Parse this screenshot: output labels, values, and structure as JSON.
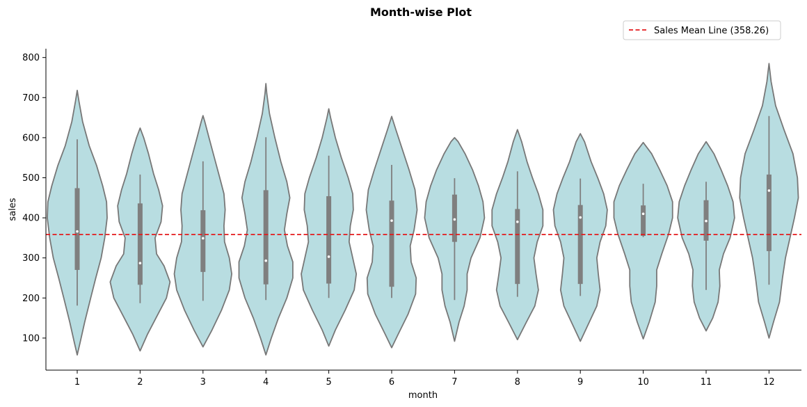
{
  "chart_data": {
    "type": "violin",
    "title": "Month-wise Plot",
    "xlabel": "month",
    "ylabel": "sales",
    "ylim": [
      20,
      822
    ],
    "yticks": [
      100,
      200,
      300,
      400,
      500,
      600,
      700,
      800
    ],
    "categories": [
      "1",
      "2",
      "3",
      "4",
      "5",
      "6",
      "7",
      "8",
      "9",
      "10",
      "11",
      "12"
    ],
    "violin_color": "#b8dde1",
    "edge_color": "#777777",
    "box_color": "#7f7f7f",
    "reference_line": {
      "label": "Sales Mean Line (358.26)",
      "value": 358.26,
      "color": "#e41a1c",
      "style": "dashed"
    },
    "legend_position": "upper-right",
    "violins": [
      {
        "month": "1",
        "min": 58,
        "max": 718,
        "whisker_low": 181,
        "q1": 270,
        "median": 366,
        "q3": 474,
        "whisker_high": 596,
        "profile": [
          [
            58,
            0.0
          ],
          [
            90,
            0.1
          ],
          [
            140,
            0.25
          ],
          [
            200,
            0.45
          ],
          [
            250,
            0.62
          ],
          [
            300,
            0.8
          ],
          [
            350,
            0.92
          ],
          [
            400,
            1.0
          ],
          [
            440,
            0.98
          ],
          [
            480,
            0.85
          ],
          [
            530,
            0.65
          ],
          [
            580,
            0.4
          ],
          [
            640,
            0.18
          ],
          [
            690,
            0.06
          ],
          [
            718,
            0.0
          ]
        ]
      },
      {
        "month": "2",
        "min": 68,
        "max": 624,
        "whisker_low": 187,
        "q1": 233,
        "median": 287,
        "q3": 436,
        "whisker_high": 508,
        "profile": [
          [
            68,
            0.0
          ],
          [
            110,
            0.25
          ],
          [
            160,
            0.6
          ],
          [
            200,
            0.88
          ],
          [
            240,
            1.0
          ],
          [
            280,
            0.8
          ],
          [
            310,
            0.55
          ],
          [
            350,
            0.5
          ],
          [
            390,
            0.7
          ],
          [
            430,
            0.75
          ],
          [
            470,
            0.62
          ],
          [
            510,
            0.45
          ],
          [
            560,
            0.28
          ],
          [
            600,
            0.12
          ],
          [
            624,
            0.0
          ]
        ]
      },
      {
        "month": "3",
        "min": 78,
        "max": 655,
        "whisker_low": 193,
        "q1": 265,
        "median": 349,
        "q3": 419,
        "whisker_high": 541,
        "profile": [
          [
            78,
            0.0
          ],
          [
            120,
            0.3
          ],
          [
            170,
            0.62
          ],
          [
            220,
            0.88
          ],
          [
            260,
            0.96
          ],
          [
            300,
            0.88
          ],
          [
            340,
            0.72
          ],
          [
            380,
            0.7
          ],
          [
            420,
            0.74
          ],
          [
            460,
            0.7
          ],
          [
            500,
            0.56
          ],
          [
            550,
            0.38
          ],
          [
            600,
            0.2
          ],
          [
            640,
            0.06
          ],
          [
            655,
            0.0
          ]
        ]
      },
      {
        "month": "4",
        "min": 58,
        "max": 735,
        "whisker_low": 195,
        "q1": 234,
        "median": 293,
        "q3": 469,
        "whisker_high": 601,
        "profile": [
          [
            58,
            0.0
          ],
          [
            100,
            0.18
          ],
          [
            150,
            0.42
          ],
          [
            200,
            0.7
          ],
          [
            250,
            0.9
          ],
          [
            290,
            0.9
          ],
          [
            330,
            0.72
          ],
          [
            370,
            0.62
          ],
          [
            410,
            0.7
          ],
          [
            450,
            0.8
          ],
          [
            490,
            0.7
          ],
          [
            540,
            0.5
          ],
          [
            600,
            0.3
          ],
          [
            660,
            0.12
          ],
          [
            710,
            0.03
          ],
          [
            735,
            0.0
          ]
        ]
      },
      {
        "month": "5",
        "min": 80,
        "max": 672,
        "whisker_low": 200,
        "q1": 236,
        "median": 303,
        "q3": 454,
        "whisker_high": 555,
        "profile": [
          [
            80,
            0.0
          ],
          [
            120,
            0.22
          ],
          [
            170,
            0.55
          ],
          [
            220,
            0.85
          ],
          [
            260,
            0.92
          ],
          [
            300,
            0.8
          ],
          [
            340,
            0.68
          ],
          [
            380,
            0.72
          ],
          [
            420,
            0.82
          ],
          [
            460,
            0.8
          ],
          [
            500,
            0.65
          ],
          [
            550,
            0.42
          ],
          [
            600,
            0.22
          ],
          [
            650,
            0.06
          ],
          [
            672,
            0.0
          ]
        ]
      },
      {
        "month": "6",
        "min": 76,
        "max": 653,
        "whisker_low": 200,
        "q1": 228,
        "median": 393,
        "q3": 443,
        "whisker_high": 532,
        "profile": [
          [
            76,
            0.0
          ],
          [
            110,
            0.22
          ],
          [
            160,
            0.55
          ],
          [
            210,
            0.8
          ],
          [
            250,
            0.82
          ],
          [
            290,
            0.65
          ],
          [
            330,
            0.62
          ],
          [
            370,
            0.75
          ],
          [
            420,
            0.85
          ],
          [
            470,
            0.78
          ],
          [
            520,
            0.58
          ],
          [
            570,
            0.36
          ],
          [
            620,
            0.14
          ],
          [
            653,
            0.0
          ]
        ]
      },
      {
        "month": "7",
        "min": 92,
        "max": 600,
        "whisker_low": 195,
        "q1": 340,
        "median": 396,
        "q3": 458,
        "whisker_high": 499,
        "profile": [
          [
            92,
            0.0
          ],
          [
            140,
            0.15
          ],
          [
            180,
            0.32
          ],
          [
            220,
            0.42
          ],
          [
            260,
            0.42
          ],
          [
            300,
            0.55
          ],
          [
            350,
            0.85
          ],
          [
            400,
            1.0
          ],
          [
            440,
            0.95
          ],
          [
            480,
            0.8
          ],
          [
            520,
            0.6
          ],
          [
            560,
            0.35
          ],
          [
            590,
            0.12
          ],
          [
            600,
            0.0
          ]
        ]
      },
      {
        "month": "8",
        "min": 96,
        "max": 620,
        "whisker_low": 203,
        "q1": 235,
        "median": 390,
        "q3": 422,
        "whisker_high": 516,
        "profile": [
          [
            96,
            0.0
          ],
          [
            140,
            0.3
          ],
          [
            180,
            0.58
          ],
          [
            220,
            0.7
          ],
          [
            260,
            0.62
          ],
          [
            300,
            0.55
          ],
          [
            340,
            0.66
          ],
          [
            380,
            0.85
          ],
          [
            420,
            0.85
          ],
          [
            460,
            0.7
          ],
          [
            500,
            0.5
          ],
          [
            540,
            0.32
          ],
          [
            590,
            0.14
          ],
          [
            620,
            0.0
          ]
        ]
      },
      {
        "month": "9",
        "min": 92,
        "max": 610,
        "whisker_low": 205,
        "q1": 235,
        "median": 401,
        "q3": 432,
        "whisker_high": 498,
        "profile": [
          [
            92,
            0.0
          ],
          [
            140,
            0.3
          ],
          [
            180,
            0.55
          ],
          [
            220,
            0.66
          ],
          [
            260,
            0.6
          ],
          [
            300,
            0.55
          ],
          [
            340,
            0.66
          ],
          [
            380,
            0.85
          ],
          [
            420,
            0.9
          ],
          [
            460,
            0.78
          ],
          [
            500,
            0.58
          ],
          [
            540,
            0.36
          ],
          [
            590,
            0.14
          ],
          [
            610,
            0.0
          ]
        ]
      },
      {
        "month": "10",
        "min": 98,
        "max": 588,
        "whisker_low": 352,
        "q1": 355,
        "median": 410,
        "q3": 431,
        "whisker_high": 485,
        "profile": [
          [
            98,
            0.0
          ],
          [
            140,
            0.2
          ],
          [
            190,
            0.4
          ],
          [
            230,
            0.45
          ],
          [
            270,
            0.45
          ],
          [
            310,
            0.62
          ],
          [
            360,
            0.85
          ],
          [
            400,
            0.98
          ],
          [
            440,
            0.98
          ],
          [
            480,
            0.8
          ],
          [
            520,
            0.55
          ],
          [
            560,
            0.28
          ],
          [
            588,
            0.0
          ]
        ]
      },
      {
        "month": "11",
        "min": 118,
        "max": 590,
        "whisker_low": 220,
        "q1": 343,
        "median": 392,
        "q3": 444,
        "whisker_high": 490,
        "profile": [
          [
            118,
            0.0
          ],
          [
            150,
            0.22
          ],
          [
            190,
            0.4
          ],
          [
            230,
            0.46
          ],
          [
            270,
            0.44
          ],
          [
            310,
            0.58
          ],
          [
            350,
            0.8
          ],
          [
            400,
            0.95
          ],
          [
            440,
            0.9
          ],
          [
            480,
            0.72
          ],
          [
            520,
            0.5
          ],
          [
            560,
            0.26
          ],
          [
            590,
            0.0
          ]
        ]
      },
      {
        "month": "12",
        "min": 100,
        "max": 785,
        "whisker_low": 233,
        "q1": 317,
        "median": 468,
        "q3": 508,
        "whisker_high": 654,
        "profile": [
          [
            100,
            0.0
          ],
          [
            140,
            0.15
          ],
          [
            190,
            0.35
          ],
          [
            250,
            0.45
          ],
          [
            300,
            0.55
          ],
          [
            350,
            0.7
          ],
          [
            400,
            0.85
          ],
          [
            450,
            0.98
          ],
          [
            500,
            0.95
          ],
          [
            560,
            0.8
          ],
          [
            620,
            0.5
          ],
          [
            680,
            0.22
          ],
          [
            740,
            0.07
          ],
          [
            785,
            0.0
          ]
        ]
      }
    ]
  }
}
